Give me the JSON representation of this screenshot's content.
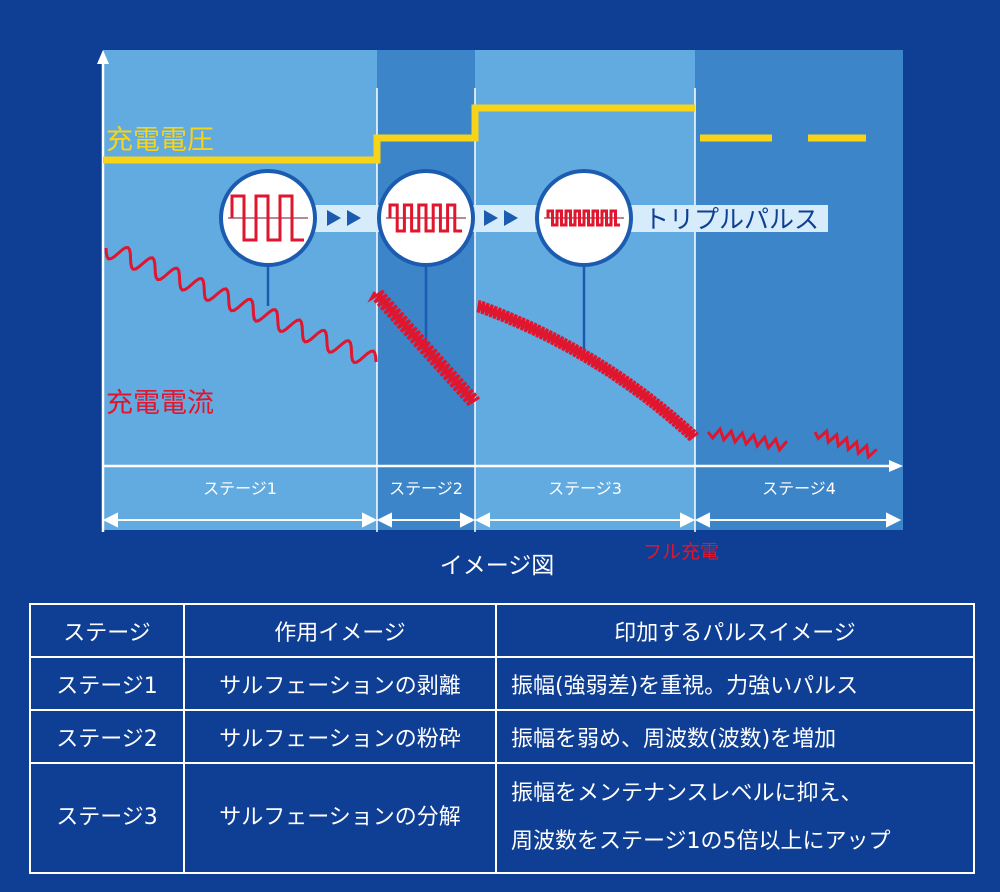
{
  "diagram": {
    "voltage_label": "充電電圧",
    "current_label": "充電電流",
    "pulse_label": "トリプルパルス",
    "stages": [
      "ステージ1",
      "ステージ2",
      "ステージ3",
      "ステージ4"
    ],
    "full_charge_label": "フル充電",
    "caption": "イメージ図",
    "colors": {
      "background": "#0f3f95",
      "panel_light": "#62abe0",
      "panel_dark": "#3c85c8",
      "voltage": "#f7d417",
      "current": "#e0152e",
      "pulse_bar": "#d6ecfa"
    }
  },
  "table": {
    "headers": [
      "ステージ",
      "作用イメージ",
      "印加するパルスイメージ"
    ],
    "rows": [
      {
        "stage": "ステージ1",
        "action": "サルフェーションの剥離",
        "pulse": [
          "振幅(強弱差)を重視。力強いパルス"
        ]
      },
      {
        "stage": "ステージ2",
        "action": "サルフェーションの粉砕",
        "pulse": [
          "振幅を弱め、周波数(波数)を増加"
        ]
      },
      {
        "stage": "ステージ3",
        "action": "サルフェーションの分解",
        "pulse": [
          "振幅をメンテナンスレベルに抑え、",
          "周波数をステージ1の5倍以上にアップ"
        ]
      }
    ]
  }
}
